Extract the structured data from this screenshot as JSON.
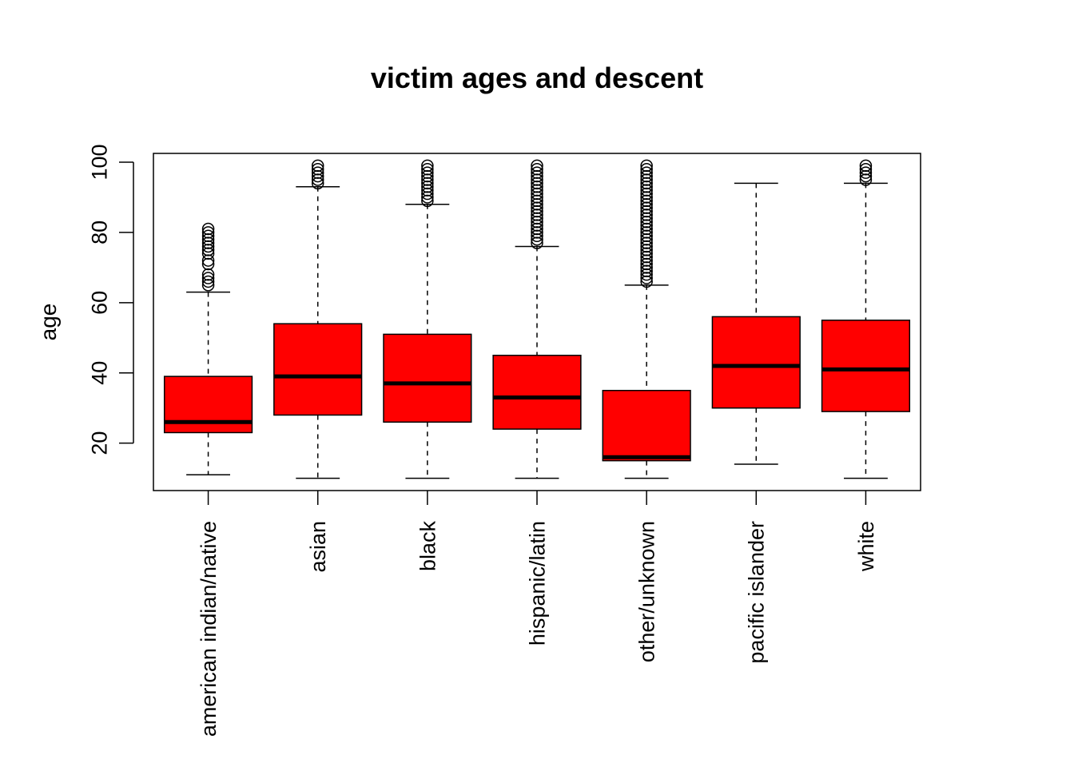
{
  "chart_data": {
    "type": "box",
    "title": "victim ages and descent",
    "xlabel": "",
    "ylabel": "age",
    "ylim": [
      6.5,
      102.5
    ],
    "yticks": [
      20,
      40,
      60,
      80,
      100
    ],
    "box_color": "#ff0000",
    "grid": false,
    "legend": "none",
    "categories": [
      "american indian/native",
      "asian",
      "black",
      "hispanic/latin",
      "other/unknown",
      "pacific islander",
      "white"
    ],
    "boxes": [
      {
        "whisker_low": 11,
        "q1": 23,
        "median": 26,
        "q3": 39,
        "whisker_high": 63,
        "outliers": [
          65,
          66,
          67,
          68,
          71,
          72,
          74,
          75,
          76,
          77,
          78,
          79,
          80,
          81
        ]
      },
      {
        "whisker_low": 10,
        "q1": 28,
        "median": 39,
        "q3": 54,
        "whisker_high": 93,
        "outliers": [
          94,
          95,
          96,
          97,
          98,
          99
        ]
      },
      {
        "whisker_low": 10,
        "q1": 26,
        "median": 37,
        "q3": 51,
        "whisker_high": 88,
        "outliers": [
          89,
          90,
          91,
          92,
          93,
          94,
          95,
          96,
          97,
          98,
          99
        ]
      },
      {
        "whisker_low": 10,
        "q1": 24,
        "median": 33,
        "q3": 45,
        "whisker_high": 76,
        "outliers": [
          77,
          78,
          79,
          80,
          81,
          82,
          83,
          84,
          85,
          86,
          87,
          88,
          89,
          90,
          91,
          92,
          93,
          94,
          95,
          96,
          97,
          98,
          99
        ]
      },
      {
        "whisker_low": 10,
        "q1": 15,
        "median": 16,
        "q3": 35,
        "whisker_high": 65,
        "outliers": [
          66,
          67,
          68,
          69,
          70,
          71,
          72,
          73,
          74,
          75,
          76,
          77,
          78,
          79,
          80,
          81,
          82,
          83,
          84,
          85,
          86,
          87,
          88,
          89,
          90,
          91,
          92,
          93,
          94,
          95,
          96,
          97,
          98,
          99
        ]
      },
      {
        "whisker_low": 14,
        "q1": 30,
        "median": 42,
        "q3": 56,
        "whisker_high": 94,
        "outliers": []
      },
      {
        "whisker_low": 10,
        "q1": 29,
        "median": 41,
        "q3": 55,
        "whisker_high": 94,
        "outliers": [
          95,
          96,
          97,
          98,
          99
        ]
      }
    ]
  }
}
